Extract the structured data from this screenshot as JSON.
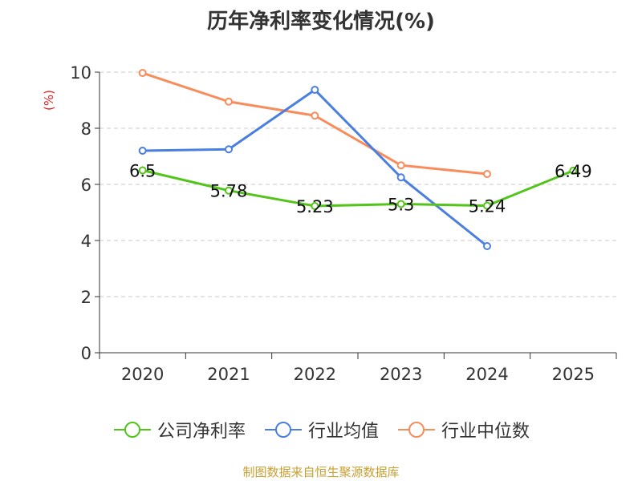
{
  "chart_data": {
    "type": "line",
    "title": "历年净利率变化情况(%)",
    "ylabel": "(%)",
    "xlabel": "",
    "categories": [
      "2020",
      "2021",
      "2022",
      "2023",
      "2024",
      "2025"
    ],
    "ylim": [
      0,
      10
    ],
    "yticks": [
      0,
      2,
      4,
      6,
      8,
      10
    ],
    "grid": true,
    "legend_position": "bottom",
    "series": [
      {
        "name": "公司净利率",
        "color": "#52c41a",
        "values": [
          6.5,
          5.78,
          5.23,
          5.3,
          5.24,
          6.49
        ],
        "labels": [
          "6.5",
          "5.78",
          "5.23",
          "5.3",
          "5.24",
          "6.49"
        ]
      },
      {
        "name": "行业均值",
        "color": "#4a7ee0",
        "values": [
          7.2,
          7.25,
          9.37,
          6.25,
          3.8,
          null
        ]
      },
      {
        "name": "行业中位数",
        "color": "#f88c5a",
        "values": [
          9.97,
          8.95,
          8.45,
          6.68,
          6.37,
          null
        ]
      }
    ]
  },
  "source": "制图数据来自恒生聚源数据库"
}
